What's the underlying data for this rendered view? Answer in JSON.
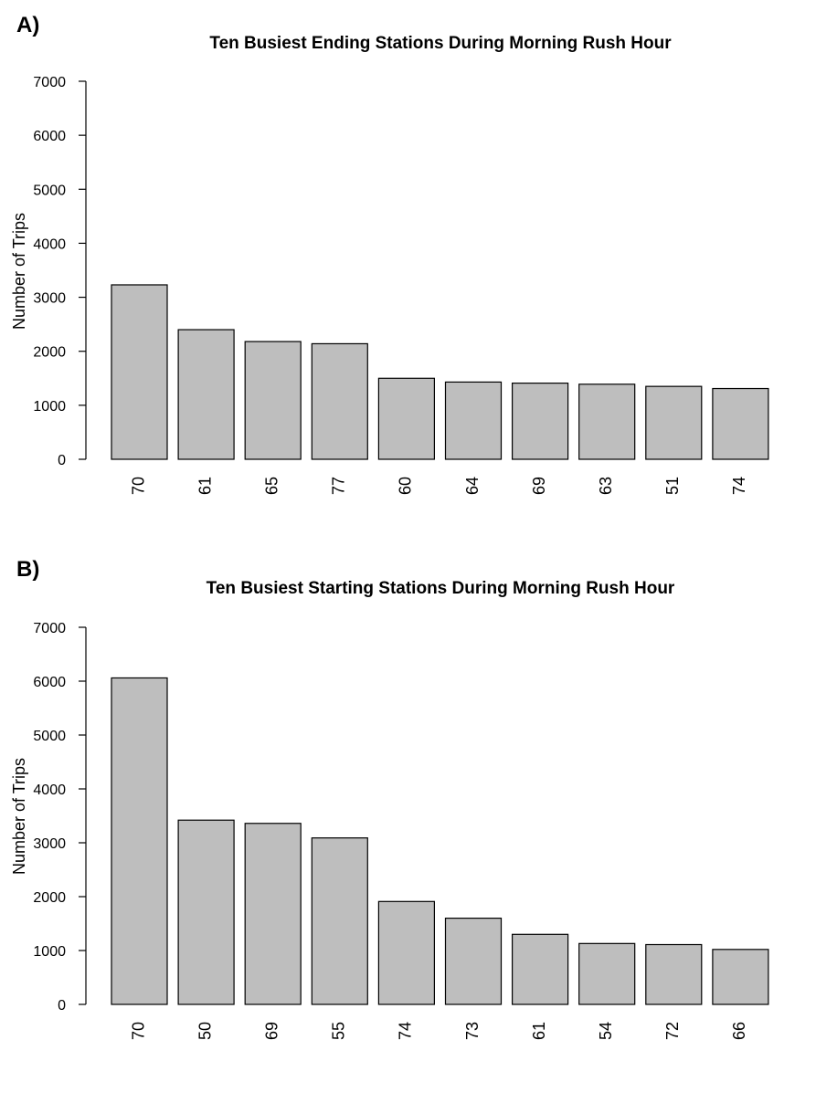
{
  "chart_data": [
    {
      "panel": "A)",
      "type": "bar",
      "title": "Ten Busiest Ending Stations During Morning Rush Hour",
      "ylabel": "Number of Trips",
      "xlabel": "",
      "ylim": [
        0,
        7000
      ],
      "yticks": [
        0,
        1000,
        2000,
        3000,
        4000,
        5000,
        6000,
        7000
      ],
      "categories": [
        "70",
        "61",
        "65",
        "77",
        "60",
        "64",
        "69",
        "63",
        "51",
        "74"
      ],
      "values": [
        3230,
        2400,
        2180,
        2140,
        1500,
        1430,
        1410,
        1390,
        1350,
        1310
      ],
      "bar_color": "#bebebe"
    },
    {
      "panel": "B)",
      "type": "bar",
      "title": "Ten Busiest Starting Stations During Morning Rush Hour",
      "ylabel": "Number of Trips",
      "xlabel": "",
      "ylim": [
        0,
        7000
      ],
      "yticks": [
        0,
        1000,
        2000,
        3000,
        4000,
        5000,
        6000,
        7000
      ],
      "categories": [
        "70",
        "50",
        "69",
        "55",
        "74",
        "73",
        "61",
        "54",
        "72",
        "66"
      ],
      "values": [
        6060,
        3420,
        3360,
        3090,
        1910,
        1600,
        1300,
        1130,
        1110,
        1020
      ],
      "bar_color": "#bebebe"
    }
  ]
}
